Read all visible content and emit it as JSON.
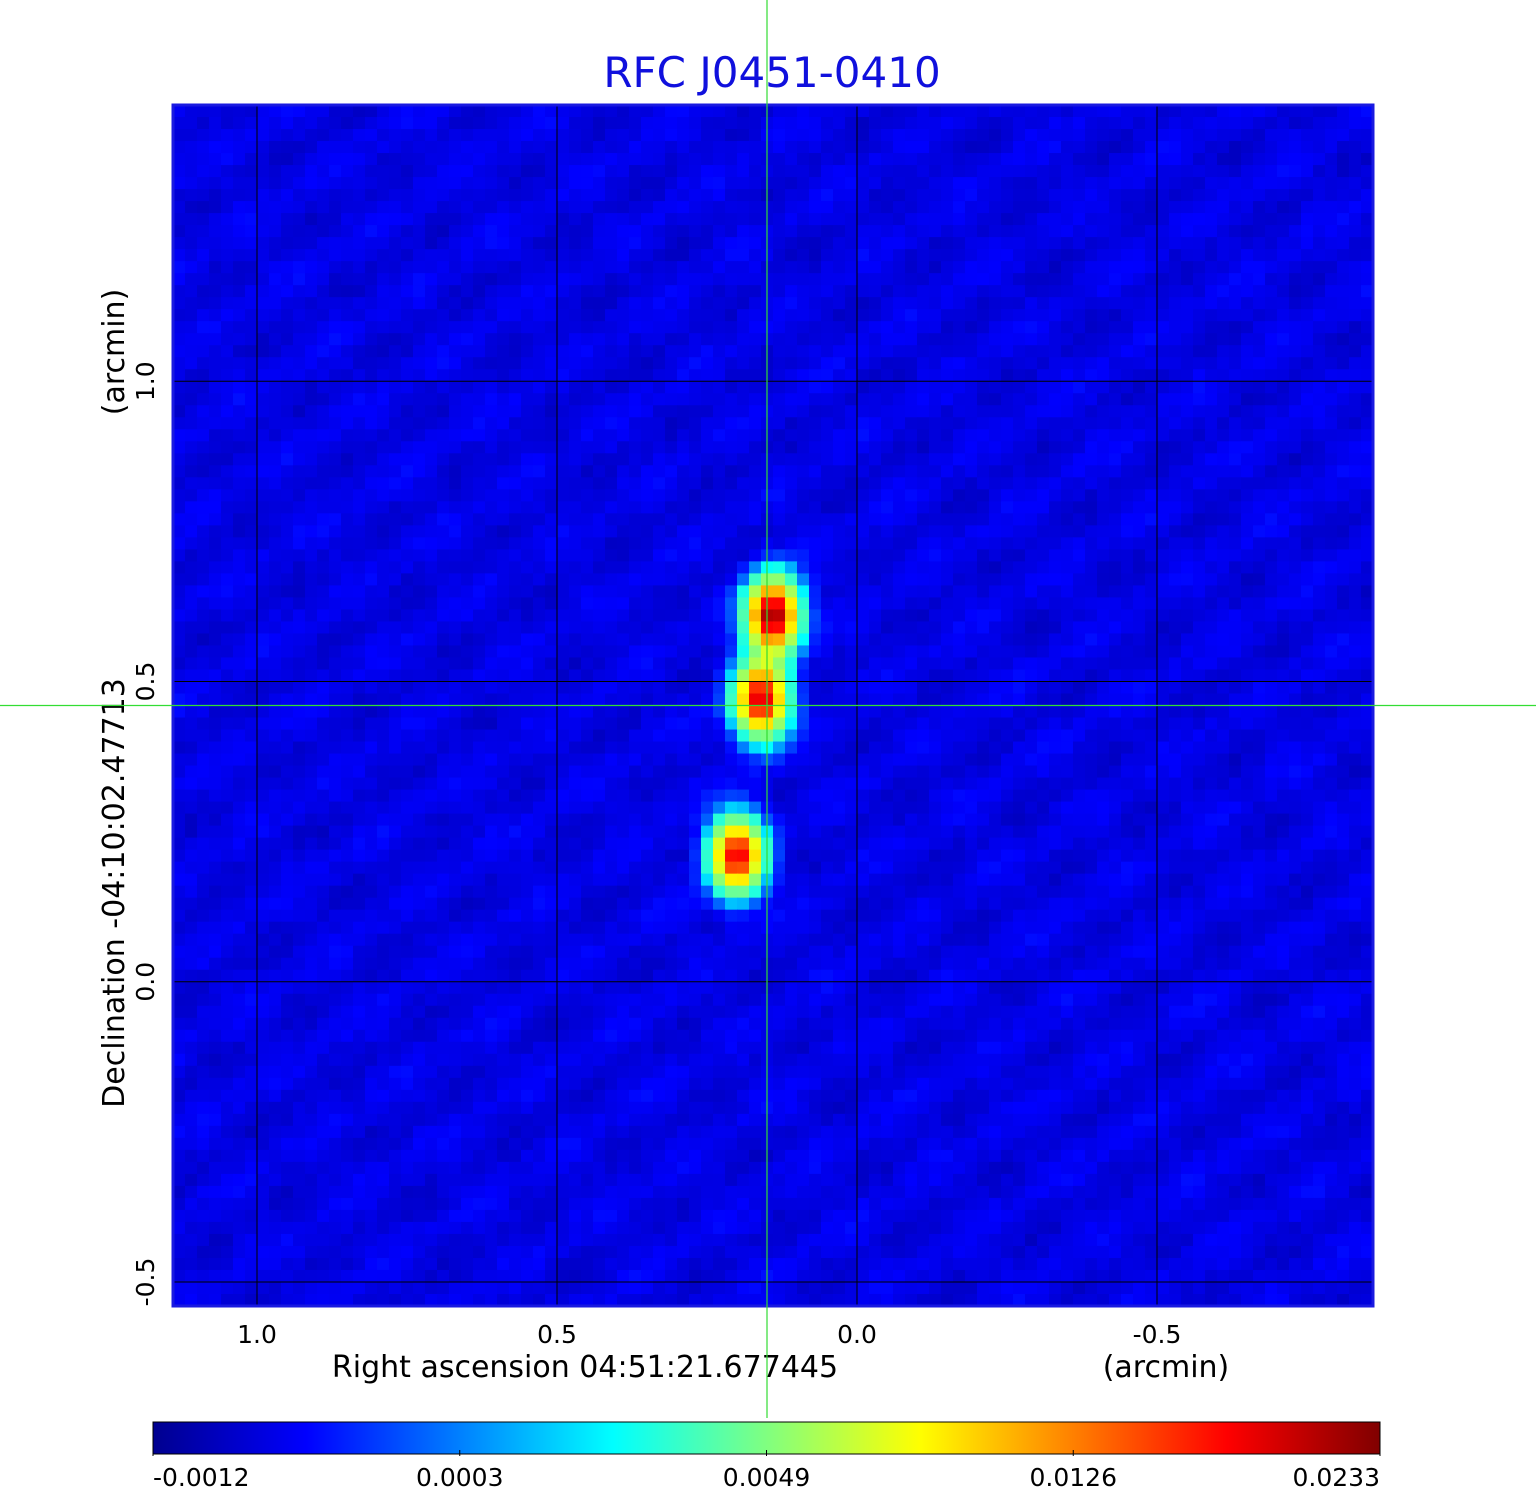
{
  "colors": {
    "title": "#1010dd",
    "frame": "#1a1ae0",
    "crosshair": "#33dd33",
    "grid": "#000000",
    "colormap": [
      "#00008f",
      "#0000ff",
      "#0080ff",
      "#00ffff",
      "#80ff80",
      "#ffff00",
      "#ff8000",
      "#ff0000",
      "#800000"
    ]
  },
  "chart_data": {
    "type": "heatmap",
    "title": "RFC J0451-0410",
    "xlabel": "Right ascension  04:51:21.677445",
    "xunit": "(arcmin)",
    "ylabel": "Declination  -04:10:02.47713",
    "yunit": "(arcmin)",
    "xlim": [
      1.14,
      -0.86
    ],
    "ylim": [
      -0.54,
      1.46
    ],
    "x_ticks": [
      1.0,
      0.5,
      0.0,
      -0.5
    ],
    "x_tick_labels": [
      "1.0",
      "0.5",
      "0.0",
      "-0.5"
    ],
    "y_ticks": [
      -0.5,
      0.0,
      0.5,
      1.0
    ],
    "y_tick_labels": [
      "-0.5",
      "0.0",
      "0.5",
      "1.0"
    ],
    "grid": true,
    "crosshair": {
      "x": 0.15,
      "y": 0.46
    },
    "colorbar": {
      "tick_labels": [
        "-0.0012",
        "0.0003",
        "0.0049",
        "0.0126",
        "0.0233"
      ],
      "min": -0.0012,
      "max": 0.0233
    },
    "sources": [
      {
        "x": 0.14,
        "y": 0.61,
        "peak": 0.0233
      },
      {
        "x": 0.16,
        "y": 0.47,
        "peak": 0.021
      },
      {
        "x": 0.2,
        "y": 0.21,
        "peak": 0.02
      }
    ]
  }
}
